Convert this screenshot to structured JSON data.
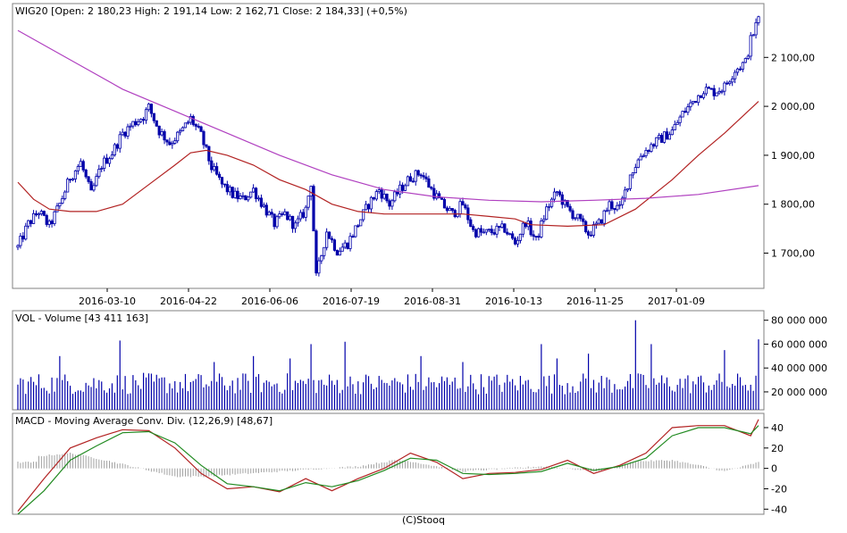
{
  "chart_data": [
    {
      "id": "price",
      "type": "candlestick",
      "title": "WIG20 [Open: 2 180,23  High: 2 191,14  Low: 2 162,71  Close: 2 184,33] (+0,5%)",
      "x_labels": [
        "2016-03-10",
        "2016-04-22",
        "2016-06-06",
        "2016-07-19",
        "2016-08-31",
        "2016-10-13",
        "2016-11-25",
        "2017-01-09"
      ],
      "y_ticks": [
        1700,
        1800,
        1900,
        2000,
        2100
      ],
      "y_tick_labels": [
        "1 700,00",
        "1 800,00",
        "1 900,00",
        "2 000,00",
        "2 100,00"
      ],
      "ylim": [
        1628,
        2210
      ],
      "grid": false,
      "color": "#0000aa",
      "series": [
        {
          "name": "close",
          "points": [
            [
              0,
              1712
            ],
            [
              4,
              1760
            ],
            [
              8,
              1785
            ],
            [
              12,
              1755
            ],
            [
              16,
              1800
            ],
            [
              20,
              1855
            ],
            [
              24,
              1885
            ],
            [
              28,
              1820
            ],
            [
              32,
              1880
            ],
            [
              36,
              1905
            ],
            [
              40,
              1945
            ],
            [
              44,
              1965
            ],
            [
              48,
              1980
            ],
            [
              50,
              1998
            ],
            [
              54,
              1950
            ],
            [
              58,
              1925
            ],
            [
              62,
              1945
            ],
            [
              66,
              1975
            ],
            [
              70,
              1940
            ],
            [
              74,
              1875
            ],
            [
              78,
              1840
            ],
            [
              82,
              1820
            ],
            [
              86,
              1810
            ],
            [
              90,
              1830
            ],
            [
              94,
              1795
            ],
            [
              98,
              1760
            ],
            [
              102,
              1780
            ],
            [
              106,
              1755
            ],
            [
              110,
              1790
            ],
            [
              112,
              1845
            ],
            [
              114,
              1650
            ],
            [
              118,
              1745
            ],
            [
              122,
              1705
            ],
            [
              126,
              1720
            ],
            [
              130,
              1760
            ],
            [
              134,
              1800
            ],
            [
              138,
              1830
            ],
            [
              142,
              1800
            ],
            [
              146,
              1830
            ],
            [
              150,
              1855
            ],
            [
              154,
              1865
            ],
            [
              158,
              1830
            ],
            [
              162,
              1800
            ],
            [
              166,
              1780
            ],
            [
              170,
              1800
            ],
            [
              174,
              1745
            ],
            [
              178,
              1740
            ],
            [
              182,
              1745
            ],
            [
              186,
              1750
            ],
            [
              190,
              1720
            ],
            [
              194,
              1765
            ],
            [
              198,
              1725
            ],
            [
              202,
              1790
            ],
            [
              206,
              1825
            ],
            [
              210,
              1790
            ],
            [
              214,
              1770
            ],
            [
              218,
              1740
            ],
            [
              222,
              1760
            ],
            [
              226,
              1800
            ],
            [
              230,
              1790
            ],
            [
              234,
              1860
            ],
            [
              238,
              1900
            ],
            [
              242,
              1920
            ],
            [
              246,
              1935
            ],
            [
              250,
              1950
            ],
            [
              254,
              1985
            ],
            [
              258,
              2010
            ],
            [
              262,
              2035
            ],
            [
              266,
              2030
            ],
            [
              270,
              2040
            ],
            [
              274,
              2075
            ],
            [
              278,
              2090
            ],
            [
              280,
              2135
            ],
            [
              283,
              2180
            ]
          ]
        },
        {
          "name": "sma_fast",
          "color": "#b22222",
          "points": [
            [
              0,
              1845
            ],
            [
              6,
              1810
            ],
            [
              12,
              1790
            ],
            [
              20,
              1785
            ],
            [
              30,
              1785
            ],
            [
              40,
              1800
            ],
            [
              50,
              1840
            ],
            [
              60,
              1880
            ],
            [
              66,
              1905
            ],
            [
              72,
              1910
            ],
            [
              80,
              1900
            ],
            [
              90,
              1880
            ],
            [
              100,
              1850
            ],
            [
              110,
              1830
            ],
            [
              120,
              1800
            ],
            [
              130,
              1785
            ],
            [
              140,
              1780
            ],
            [
              150,
              1780
            ],
            [
              160,
              1780
            ],
            [
              170,
              1780
            ],
            [
              180,
              1775
            ],
            [
              190,
              1770
            ],
            [
              196,
              1758
            ],
            [
              210,
              1755
            ],
            [
              224,
              1758
            ],
            [
              236,
              1790
            ],
            [
              250,
              1850
            ],
            [
              260,
              1900
            ],
            [
              270,
              1945
            ],
            [
              283,
              2010
            ]
          ]
        },
        {
          "name": "sma_slow",
          "color": "#b040c0",
          "points": [
            [
              0,
              2155
            ],
            [
              20,
              2095
            ],
            [
              40,
              2035
            ],
            [
              60,
              1990
            ],
            [
              80,
              1945
            ],
            [
              100,
              1900
            ],
            [
              120,
              1860
            ],
            [
              140,
              1830
            ],
            [
              160,
              1815
            ],
            [
              180,
              1808
            ],
            [
              200,
              1805
            ],
            [
              220,
              1808
            ],
            [
              240,
              1812
            ],
            [
              260,
              1820
            ],
            [
              283,
              1838
            ]
          ]
        }
      ]
    },
    {
      "id": "volume",
      "type": "bar",
      "title": "VOL - Volume [43 411 163]",
      "y_ticks": [
        20000000,
        40000000,
        60000000,
        80000000
      ],
      "y_tick_labels": [
        "20 000 000",
        "40 000 000",
        "60 000 000",
        "80 000 000"
      ],
      "ylim": [
        5000000,
        88000000
      ],
      "color": "#0000aa",
      "spikes": [
        [
          16,
          50000000
        ],
        [
          39,
          63000000
        ],
        [
          75,
          45000000
        ],
        [
          90,
          50000000
        ],
        [
          104,
          48000000
        ],
        [
          112,
          60000000
        ],
        [
          125,
          62000000
        ],
        [
          154,
          50000000
        ],
        [
          170,
          45000000
        ],
        [
          200,
          60000000
        ],
        [
          206,
          48000000
        ],
        [
          218,
          52000000
        ],
        [
          236,
          80000000
        ],
        [
          242,
          60000000
        ],
        [
          270,
          55000000
        ],
        [
          283,
          64000000
        ]
      ],
      "last_value": 43411163
    },
    {
      "id": "macd",
      "type": "line",
      "title": "MACD - Moving Average Conv. Div. (12,26,9) [48,67]",
      "y_ticks": [
        -40,
        -20,
        0,
        20,
        40
      ],
      "y_tick_labels": [
        "-40",
        "-20",
        "0",
        "20",
        "40"
      ],
      "ylim": [
        -45,
        54
      ],
      "series": [
        {
          "name": "macd",
          "color": "#b22222",
          "points": [
            [
              0,
              -42
            ],
            [
              10,
              -10
            ],
            [
              20,
              20
            ],
            [
              30,
              30
            ],
            [
              40,
              38
            ],
            [
              50,
              37
            ],
            [
              60,
              20
            ],
            [
              70,
              -5
            ],
            [
              80,
              -20
            ],
            [
              90,
              -18
            ],
            [
              100,
              -23
            ],
            [
              110,
              -10
            ],
            [
              120,
              -22
            ],
            [
              130,
              -10
            ],
            [
              140,
              0
            ],
            [
              150,
              15
            ],
            [
              160,
              6
            ],
            [
              170,
              -10
            ],
            [
              180,
              -5
            ],
            [
              190,
              -4
            ],
            [
              200,
              -1
            ],
            [
              210,
              8
            ],
            [
              220,
              -5
            ],
            [
              230,
              3
            ],
            [
              240,
              15
            ],
            [
              250,
              40
            ],
            [
              260,
              42
            ],
            [
              270,
              42
            ],
            [
              280,
              32
            ],
            [
              283,
              48
            ]
          ]
        },
        {
          "name": "signal",
          "color": "#228b22",
          "points": [
            [
              0,
              -45
            ],
            [
              10,
              -22
            ],
            [
              20,
              8
            ],
            [
              30,
              22
            ],
            [
              40,
              35
            ],
            [
              50,
              36
            ],
            [
              60,
              25
            ],
            [
              70,
              3
            ],
            [
              80,
              -15
            ],
            [
              90,
              -18
            ],
            [
              100,
              -22
            ],
            [
              110,
              -14
            ],
            [
              120,
              -18
            ],
            [
              130,
              -12
            ],
            [
              140,
              -2
            ],
            [
              150,
              10
            ],
            [
              160,
              8
            ],
            [
              170,
              -5
            ],
            [
              180,
              -6
            ],
            [
              190,
              -5
            ],
            [
              200,
              -3
            ],
            [
              210,
              5
            ],
            [
              220,
              -2
            ],
            [
              230,
              2
            ],
            [
              240,
              10
            ],
            [
              250,
              32
            ],
            [
              260,
              40
            ],
            [
              270,
              40
            ],
            [
              280,
              34
            ],
            [
              283,
              42
            ]
          ]
        }
      ],
      "histogram": [
        [
          8,
          12
        ],
        [
          20,
          15
        ],
        [
          30,
          10
        ],
        [
          42,
          3
        ],
        [
          50,
          -2
        ],
        [
          60,
          -8
        ],
        [
          70,
          -8
        ],
        [
          100,
          -3
        ],
        [
          130,
          2
        ],
        [
          144,
          8
        ],
        [
          150,
          7
        ],
        [
          170,
          -3
        ],
        [
          200,
          2
        ],
        [
          222,
          -3
        ],
        [
          236,
          7
        ],
        [
          250,
          8
        ],
        [
          262,
          2
        ],
        [
          270,
          -3
        ],
        [
          283,
          6
        ]
      ]
    }
  ],
  "footer": "(C)Stooq"
}
